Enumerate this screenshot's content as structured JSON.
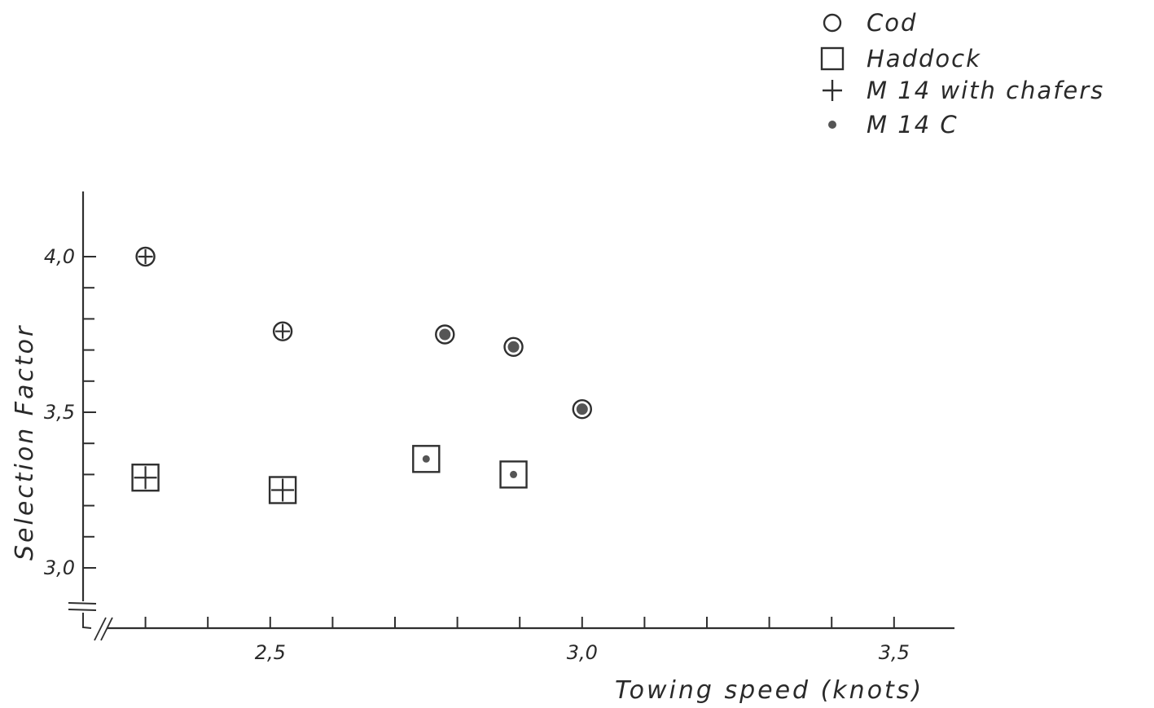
{
  "chart_data": {
    "type": "scatter",
    "xlabel": "Towing speed (knots)",
    "ylabel": "Selection Factor",
    "x_tick_labels": [
      "2,5",
      "3,0",
      "3,5"
    ],
    "y_tick_labels": [
      "3,0",
      "3,5",
      "4,0"
    ],
    "xlim": [
      2.2,
      3.6
    ],
    "ylim": [
      2.9,
      4.2
    ],
    "legend": {
      "position": "top-right",
      "entries": [
        {
          "symbol": "circle",
          "label": "Cod"
        },
        {
          "symbol": "square",
          "label": "Haddock"
        },
        {
          "symbol": "plus",
          "label": "M 14 with chafers"
        },
        {
          "symbol": "dot",
          "label": "M 14 C"
        }
      ]
    },
    "series": [
      {
        "species": "cod",
        "net": "M 14 with chafers",
        "points": [
          {
            "x": 2.3,
            "y": 4.0
          },
          {
            "x": 2.52,
            "y": 3.76
          }
        ]
      },
      {
        "species": "cod",
        "net": "M 14 C",
        "points": [
          {
            "x": 2.78,
            "y": 3.75
          },
          {
            "x": 2.89,
            "y": 3.71
          },
          {
            "x": 3.0,
            "y": 3.51
          }
        ]
      },
      {
        "species": "haddock",
        "net": "M 14 with chafers",
        "points": [
          {
            "x": 2.3,
            "y": 3.29
          },
          {
            "x": 2.52,
            "y": 3.25
          }
        ]
      },
      {
        "species": "haddock",
        "net": "M 14 C",
        "points": [
          {
            "x": 2.75,
            "y": 3.35
          },
          {
            "x": 2.89,
            "y": 3.3
          }
        ]
      }
    ]
  }
}
